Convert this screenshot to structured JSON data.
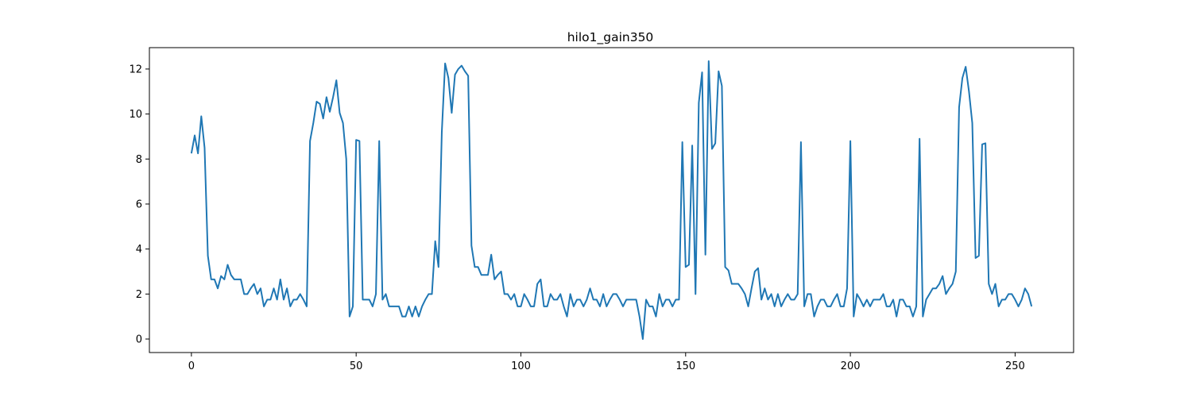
{
  "chart_data": {
    "type": "line",
    "title": "hilo1_gain350",
    "xlabel": "",
    "ylabel": "",
    "xlim": [
      -12.75,
      267.75
    ],
    "ylim": [
      -0.6,
      12.95
    ],
    "xticks": [
      0,
      50,
      100,
      150,
      200,
      250
    ],
    "yticks": [
      0,
      2,
      4,
      6,
      8,
      10,
      12
    ],
    "grid": false,
    "line_color": "#1f77b4",
    "series": [
      {
        "x_start": 0,
        "values": [
          8.25,
          9.05,
          8.25,
          9.9,
          8.5,
          3.7,
          2.65,
          2.65,
          2.25,
          2.8,
          2.65,
          3.3,
          2.85,
          2.65,
          2.65,
          2.65,
          2.0,
          2.0,
          2.25,
          2.45,
          2.0,
          2.25,
          1.45,
          1.75,
          1.75,
          2.25,
          1.75,
          2.65,
          1.75,
          2.25,
          1.45,
          1.75,
          1.75,
          2.0,
          1.75,
          1.45,
          8.8,
          9.6,
          10.55,
          10.45,
          9.8,
          10.75,
          10.1,
          10.75,
          11.5,
          10.05,
          9.6,
          8.0,
          1.0,
          1.45,
          8.85,
          8.8,
          1.75,
          1.75,
          1.75,
          1.45,
          2.0,
          8.8,
          1.75,
          2.0,
          1.45,
          1.45,
          1.45,
          1.45,
          1.0,
          1.0,
          1.45,
          1.0,
          1.45,
          1.0,
          1.45,
          1.75,
          2.0,
          2.0,
          4.35,
          3.2,
          9.2,
          12.25,
          11.6,
          10.05,
          11.75,
          12.0,
          12.15,
          11.9,
          11.7,
          4.15,
          3.2,
          3.2,
          2.85,
          2.85,
          2.85,
          3.75,
          2.65,
          2.85,
          3.0,
          2.0,
          2.0,
          1.75,
          2.0,
          1.45,
          1.45,
          2.0,
          1.75,
          1.45,
          1.45,
          2.45,
          2.65,
          1.45,
          1.45,
          2.0,
          1.75,
          1.75,
          2.0,
          1.45,
          1.0,
          2.0,
          1.45,
          1.75,
          1.75,
          1.45,
          1.75,
          2.25,
          1.75,
          1.75,
          1.45,
          2.0,
          1.45,
          1.75,
          2.0,
          2.0,
          1.75,
          1.45,
          1.75,
          1.75,
          1.75,
          1.75,
          1.0,
          0.0,
          1.75,
          1.45,
          1.45,
          1.0,
          2.0,
          1.45,
          1.75,
          1.75,
          1.45,
          1.75,
          1.75,
          8.75,
          3.2,
          3.3,
          8.6,
          2.0,
          10.5,
          11.85,
          3.75,
          12.35,
          8.45,
          8.7,
          11.9,
          11.25,
          3.2,
          3.05,
          2.45,
          2.45,
          2.45,
          2.25,
          2.0,
          1.45,
          2.25,
          3.0,
          3.15,
          1.75,
          2.25,
          1.75,
          2.0,
          1.45,
          2.0,
          1.45,
          1.75,
          2.0,
          1.75,
          1.75,
          2.0,
          8.75,
          1.45,
          2.0,
          2.0,
          1.0,
          1.45,
          1.75,
          1.75,
          1.45,
          1.45,
          1.75,
          2.0,
          1.45,
          1.45,
          2.25,
          8.8,
          1.0,
          2.0,
          1.75,
          1.45,
          1.75,
          1.45,
          1.75,
          1.75,
          1.75,
          2.0,
          1.45,
          1.45,
          1.75,
          1.0,
          1.75,
          1.75,
          1.45,
          1.45,
          1.0,
          1.45,
          8.9,
          1.0,
          1.75,
          2.0,
          2.25,
          2.25,
          2.45,
          2.8,
          2.0,
          2.25,
          2.45,
          3.0,
          10.3,
          11.6,
          12.1,
          11.0,
          9.6,
          3.6,
          3.7,
          8.65,
          8.7,
          2.45,
          2.0,
          2.45,
          1.45,
          1.75,
          1.75,
          2.0,
          2.0,
          1.75,
          1.45,
          1.75,
          2.25,
          2.0,
          1.45
        ]
      }
    ]
  }
}
